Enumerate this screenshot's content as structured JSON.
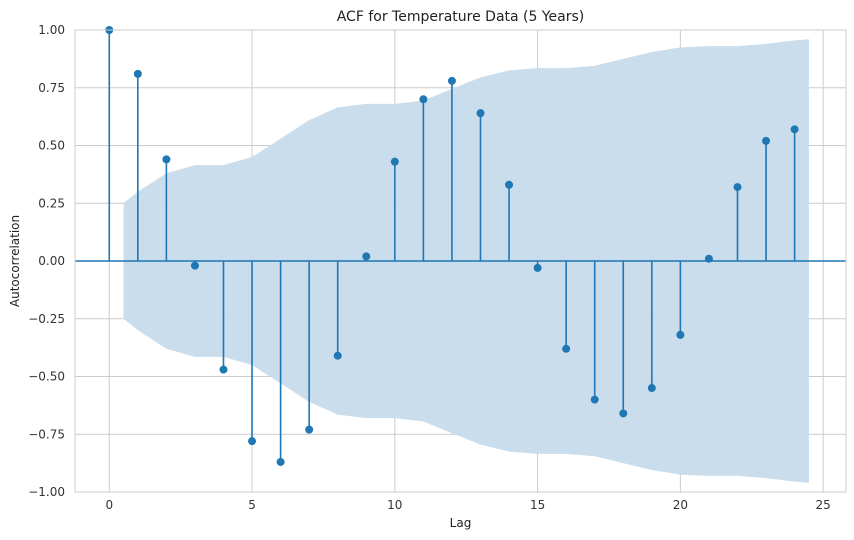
{
  "chart_data": {
    "type": "stem",
    "title": "ACF for Temperature Data (5 Years)",
    "xlabel": "Lag",
    "ylabel": "Autocorrelation",
    "xlim": [
      -1.2,
      25.8
    ],
    "ylim": [
      -1.0,
      1.0
    ],
    "xticks": [
      0,
      5,
      10,
      15,
      20,
      25
    ],
    "yticks": [
      -1.0,
      -0.75,
      -0.5,
      -0.25,
      0.0,
      0.25,
      0.5,
      0.75,
      1.0
    ],
    "xtick_labels": [
      "0",
      "5",
      "10",
      "15",
      "20",
      "25"
    ],
    "ytick_labels": [
      "−1.00",
      "−0.75",
      "−0.50",
      "−0.25",
      "0.00",
      "0.25",
      "0.50",
      "0.75",
      "1.00"
    ],
    "grid": true,
    "lags": [
      0,
      1,
      2,
      3,
      4,
      5,
      6,
      7,
      8,
      9,
      10,
      11,
      12,
      13,
      14,
      15,
      16,
      17,
      18,
      19,
      20,
      21,
      22,
      23,
      24
    ],
    "acf": [
      1.0,
      0.81,
      0.44,
      -0.02,
      -0.47,
      -0.78,
      -0.87,
      -0.73,
      -0.41,
      0.02,
      0.43,
      0.7,
      0.78,
      0.64,
      0.33,
      -0.03,
      -0.38,
      -0.6,
      -0.66,
      -0.55,
      -0.32,
      0.01,
      0.32,
      0.52,
      0.57
    ],
    "confidence_band": {
      "x": [
        0.5,
        1,
        2,
        3,
        4,
        5,
        6,
        7,
        8,
        9,
        10,
        11,
        12,
        13,
        14,
        15,
        16,
        17,
        18,
        19,
        20,
        21,
        22,
        23,
        24,
        24.5
      ],
      "upper": [
        0.25,
        0.3,
        0.38,
        0.415,
        0.415,
        0.45,
        0.53,
        0.61,
        0.665,
        0.68,
        0.68,
        0.695,
        0.745,
        0.795,
        0.825,
        0.835,
        0.835,
        0.845,
        0.875,
        0.905,
        0.925,
        0.93,
        0.93,
        0.94,
        0.955,
        0.96
      ],
      "color": "#c6dbec"
    },
    "colors": {
      "stem": "#1f77b4",
      "baseline": "#1f77b4",
      "band": "#c6dbec"
    }
  }
}
